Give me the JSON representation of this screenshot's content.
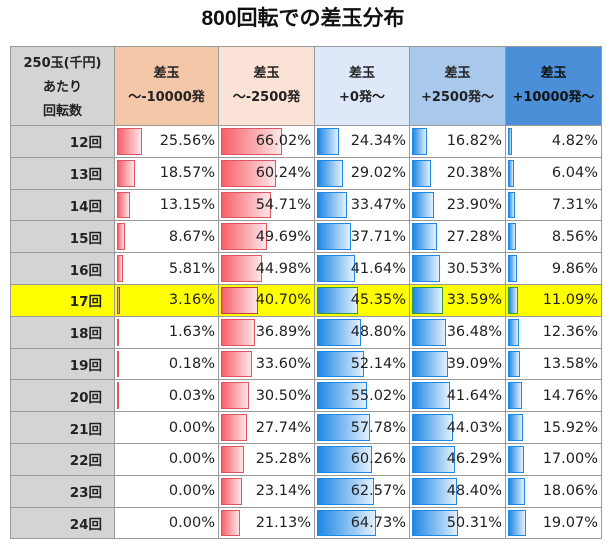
{
  "chart_data": {
    "type": "table",
    "title": "800回転での差玉分布",
    "row_header": [
      "250玉(千円)",
      "あたり",
      "回転数"
    ],
    "columns": [
      {
        "line1": "差玉",
        "line2": "～-10000発",
        "color": "#f4c7a9",
        "bar": "red"
      },
      {
        "line1": "差玉",
        "line2": "～-2500発",
        "color": "#fbe2d6",
        "bar": "red"
      },
      {
        "line1": "差玉",
        "line2": "+0発～",
        "color": "#dde9f8",
        "bar": "blue"
      },
      {
        "line1": "差玉",
        "line2": "+2500発～",
        "color": "#a9c9ec",
        "bar": "blue"
      },
      {
        "line1": "差玉",
        "line2": "+10000発～",
        "color": "#4a8fd8",
        "bar": "blue"
      }
    ],
    "highlight_row": "17回",
    "highlight_color": "#ffff00",
    "rows": [
      {
        "label": "12回",
        "values": [
          "25.56%",
          "66.02%",
          "24.34%",
          "16.82%",
          "4.82%"
        ]
      },
      {
        "label": "13回",
        "values": [
          "18.57%",
          "60.24%",
          "29.02%",
          "20.38%",
          "6.04%"
        ]
      },
      {
        "label": "14回",
        "values": [
          "13.15%",
          "54.71%",
          "33.47%",
          "23.90%",
          "7.31%"
        ]
      },
      {
        "label": "15回",
        "values": [
          "8.67%",
          "49.69%",
          "37.71%",
          "27.28%",
          "8.56%"
        ]
      },
      {
        "label": "16回",
        "values": [
          "5.81%",
          "44.98%",
          "41.64%",
          "30.53%",
          "9.86%"
        ]
      },
      {
        "label": "17回",
        "values": [
          "3.16%",
          "40.70%",
          "45.35%",
          "33.59%",
          "11.09%"
        ]
      },
      {
        "label": "18回",
        "values": [
          "1.63%",
          "36.89%",
          "48.80%",
          "36.48%",
          "12.36%"
        ]
      },
      {
        "label": "19回",
        "values": [
          "0.18%",
          "33.60%",
          "52.14%",
          "39.09%",
          "13.58%"
        ]
      },
      {
        "label": "20回",
        "values": [
          "0.03%",
          "30.50%",
          "55.02%",
          "41.64%",
          "14.76%"
        ]
      },
      {
        "label": "21回",
        "values": [
          "0.00%",
          "27.74%",
          "57.78%",
          "44.03%",
          "15.92%"
        ]
      },
      {
        "label": "22回",
        "values": [
          "0.00%",
          "25.28%",
          "60.26%",
          "46.29%",
          "17.00%"
        ]
      },
      {
        "label": "23回",
        "values": [
          "0.00%",
          "23.14%",
          "62.57%",
          "48.40%",
          "18.06%"
        ]
      },
      {
        "label": "24回",
        "values": [
          "0.00%",
          "21.13%",
          "64.73%",
          "50.31%",
          "19.07%"
        ]
      }
    ]
  }
}
